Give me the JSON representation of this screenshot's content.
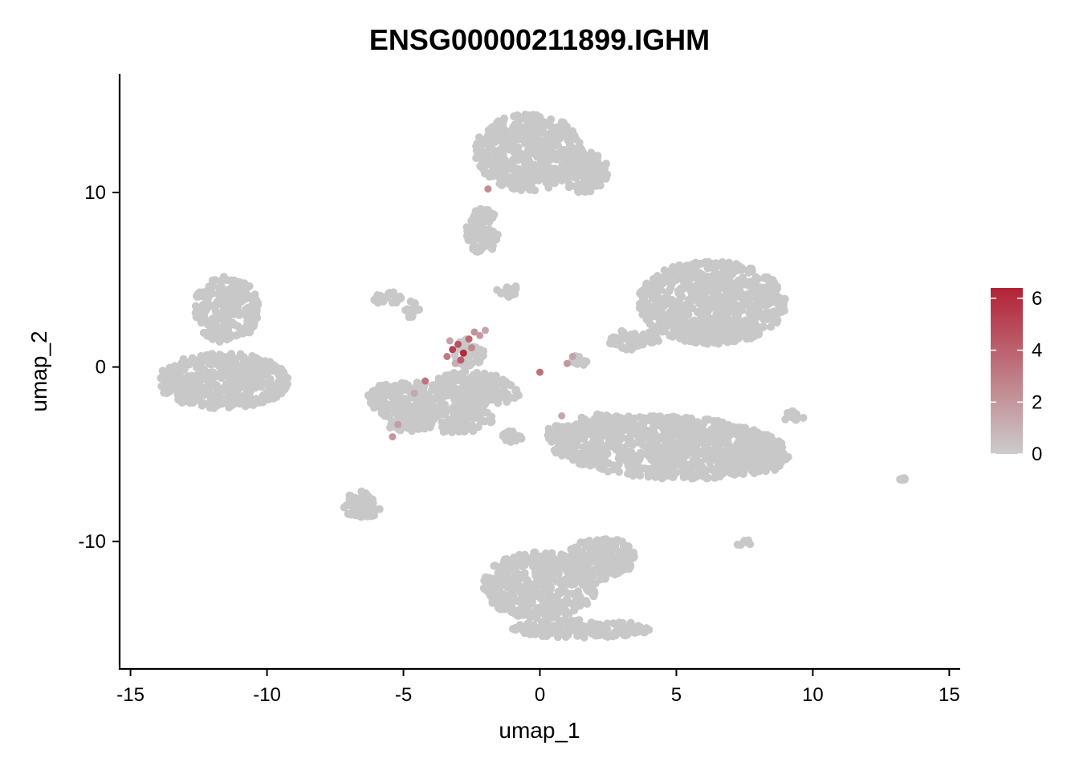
{
  "chart_data": {
    "type": "scatter",
    "title": "ENSG00000211899.IGHM",
    "xlabel": "umap_1",
    "ylabel": "umap_2",
    "xlim": [
      -15.4,
      15.4
    ],
    "ylim": [
      -17.3,
      16.8
    ],
    "x_ticks": [
      -15,
      -10,
      -5,
      0,
      5,
      10,
      15
    ],
    "y_ticks": [
      -10,
      0,
      10
    ],
    "grid": false,
    "legend": {
      "type": "colorbar",
      "placement": "right",
      "range": [
        0,
        6.4
      ],
      "ticks": [
        0,
        2,
        4,
        6
      ]
    },
    "colors": {
      "low": "#cccccc",
      "high": "#b22236",
      "point_default": "#c8c8c8",
      "axis": "#000000"
    },
    "clusters": [
      {
        "cx": 6.3,
        "cy": 3.7,
        "rx": 2.7,
        "ry": 2.4,
        "rot": -5
      },
      {
        "cx": 4.7,
        "cy": -4.6,
        "rx": 4.4,
        "ry": 1.8,
        "rot": -5
      },
      {
        "cx": 8.2,
        "cy": -5.2,
        "rx": 0.9,
        "ry": 0.8,
        "rot": 0
      },
      {
        "cx": 2.3,
        "cy": -3.3,
        "rx": 1.0,
        "ry": 0.7,
        "rot": 0
      },
      {
        "cx": 0.8,
        "cy": -3.8,
        "rx": 0.6,
        "ry": 0.5,
        "rot": 0
      },
      {
        "cx": -0.4,
        "cy": 12.3,
        "rx": 2.0,
        "ry": 2.2,
        "rot": 0
      },
      {
        "cx": 1.6,
        "cy": 11.2,
        "rx": 0.9,
        "ry": 1.2,
        "rot": 0
      },
      {
        "cx": -2.1,
        "cy": 7.8,
        "rx": 0.6,
        "ry": 1.3,
        "rot": 0
      },
      {
        "cx": -11.5,
        "cy": 3.3,
        "rx": 1.2,
        "ry": 1.9,
        "rot": 0
      },
      {
        "cx": -11.6,
        "cy": -0.8,
        "rx": 2.4,
        "ry": 1.6,
        "rot": 0
      },
      {
        "cx": -4.0,
        "cy": -2.3,
        "rx": 2.4,
        "ry": 1.3,
        "rot": -20
      },
      {
        "cx": -2.3,
        "cy": -1.2,
        "rx": 1.6,
        "ry": 0.9,
        "rot": -15
      },
      {
        "cx": -2.6,
        "cy": 0.8,
        "rx": 0.6,
        "ry": 0.8,
        "rot": 0
      },
      {
        "cx": -4.8,
        "cy": -3.3,
        "rx": 0.8,
        "ry": 0.4,
        "rot": 0
      },
      {
        "cx": -1.0,
        "cy": -3.9,
        "rx": 0.4,
        "ry": 0.4,
        "rot": 0
      },
      {
        "cx": -6.5,
        "cy": -7.9,
        "rx": 0.7,
        "ry": 0.8,
        "rot": 0
      },
      {
        "cx": -5.5,
        "cy": 3.9,
        "rx": 0.6,
        "ry": 0.4,
        "rot": 0
      },
      {
        "cx": -4.7,
        "cy": 3.3,
        "rx": 0.3,
        "ry": 0.5,
        "rot": 0
      },
      {
        "cx": -1.2,
        "cy": 4.4,
        "rx": 0.4,
        "ry": 0.4,
        "rot": 0
      },
      {
        "cx": 0.0,
        "cy": -12.5,
        "rx": 2.1,
        "ry": 1.9,
        "rot": 0
      },
      {
        "cx": 1.5,
        "cy": -15.0,
        "rx": 2.6,
        "ry": 0.5,
        "rot": 0
      },
      {
        "cx": 2.2,
        "cy": -11.0,
        "rx": 1.3,
        "ry": 1.2,
        "rot": 35
      },
      {
        "cx": 3.2,
        "cy": 1.5,
        "rx": 0.7,
        "ry": 0.6,
        "rot": 0
      },
      {
        "cx": 4.1,
        "cy": 1.8,
        "rx": 0.5,
        "ry": 0.4,
        "rot": 0
      },
      {
        "cx": 1.5,
        "cy": 0.4,
        "rx": 0.4,
        "ry": 0.3,
        "rot": 0
      },
      {
        "cx": 9.3,
        "cy": -2.8,
        "rx": 0.5,
        "ry": 0.3,
        "rot": 0
      },
      {
        "cx": 13.3,
        "cy": -6.5,
        "rx": 0.15,
        "ry": 0.15,
        "rot": 0
      },
      {
        "cx": 7.5,
        "cy": -10.1,
        "rx": 0.3,
        "ry": 0.2,
        "rot": 0
      }
    ],
    "expressing_points": [
      {
        "x": -3.2,
        "y": 1.0,
        "value": 5.2
      },
      {
        "x": -3.0,
        "y": 1.3,
        "value": 4.6
      },
      {
        "x": -2.8,
        "y": 0.8,
        "value": 6.1
      },
      {
        "x": -2.6,
        "y": 1.6,
        "value": 3.8
      },
      {
        "x": -2.4,
        "y": 2.0,
        "value": 2.2
      },
      {
        "x": -2.2,
        "y": 1.8,
        "value": 1.9
      },
      {
        "x": -2.0,
        "y": 2.1,
        "value": 1.5
      },
      {
        "x": -3.4,
        "y": 0.6,
        "value": 3.1
      },
      {
        "x": -3.1,
        "y": 0.2,
        "value": 1.2
      },
      {
        "x": -2.9,
        "y": 0.4,
        "value": 4.2
      },
      {
        "x": -2.5,
        "y": 1.1,
        "value": 2.6
      },
      {
        "x": -3.3,
        "y": 1.5,
        "value": 1.6
      },
      {
        "x": -4.2,
        "y": -0.8,
        "value": 3.3
      },
      {
        "x": -4.6,
        "y": -1.5,
        "value": 1.4
      },
      {
        "x": -5.2,
        "y": -3.3,
        "value": 1.8
      },
      {
        "x": -5.4,
        "y": -4.0,
        "value": 2.0
      },
      {
        "x": -1.9,
        "y": 10.2,
        "value": 2.4
      },
      {
        "x": 0.0,
        "y": -0.3,
        "value": 3.5
      },
      {
        "x": 1.0,
        "y": 0.2,
        "value": 2.0
      },
      {
        "x": 1.2,
        "y": 0.6,
        "value": 1.6
      },
      {
        "x": 0.8,
        "y": -2.8,
        "value": 1.4
      }
    ]
  }
}
